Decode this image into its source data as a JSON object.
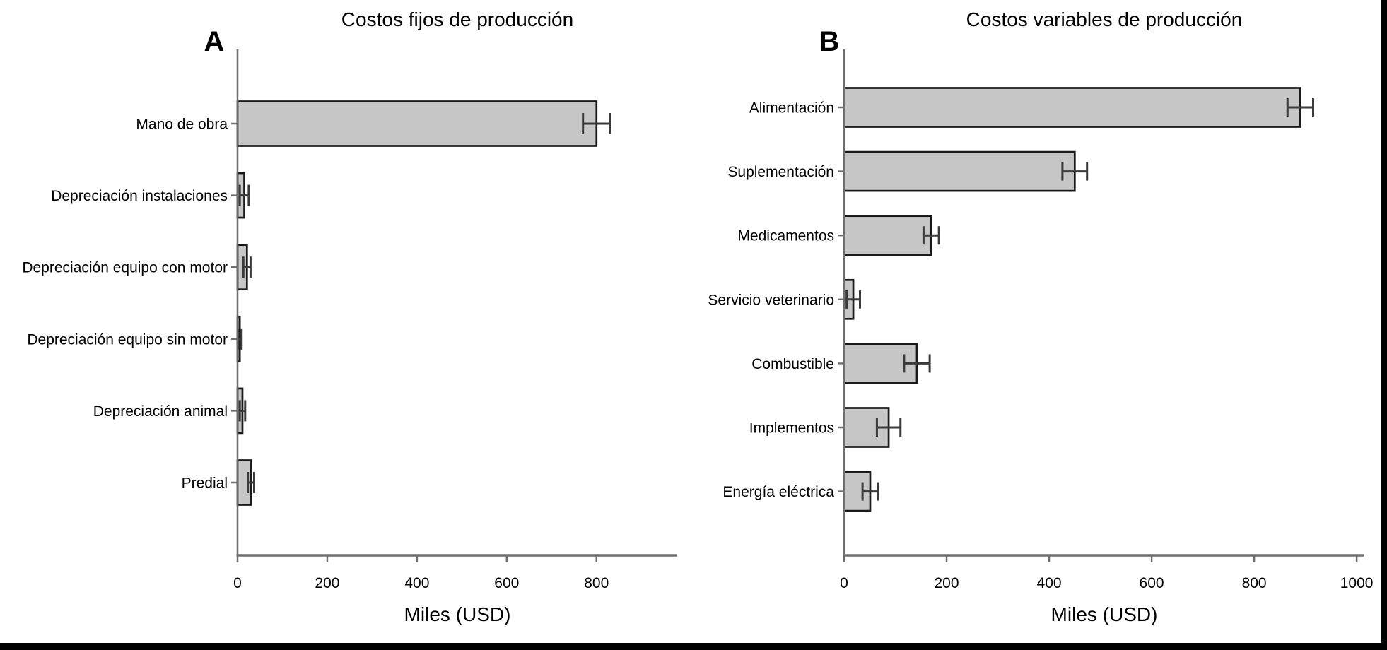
{
  "frame": {
    "background": "#ffffff",
    "border_color": "#000000"
  },
  "colors": {
    "bar_fill": "#c6c6c6",
    "bar_border": "#1a1a1a",
    "axis": "#6e6e6e",
    "error_bar": "#3a3a3a",
    "text": "#000000"
  },
  "panel_a": {
    "letter": "A",
    "title": "Costos fijos de producción",
    "xlabel": "Miles (USD)"
  },
  "panel_b": {
    "letter": "B",
    "title": "Costos variables de producción",
    "xlabel": "Miles (USD)"
  },
  "chart_data": [
    {
      "type": "bar",
      "orientation": "horizontal",
      "panel": "A",
      "title": "Costos fijos de producción",
      "xlabel": "Miles (USD)",
      "categories": [
        "Mano de obra",
        "Depreciación instalaciones",
        "Depreciación equipo con motor",
        "Depreciación equipo sin motor",
        "Depreciación animal",
        "Predial"
      ],
      "values": [
        800,
        15,
        21,
        5,
        11,
        30
      ],
      "errors": [
        30,
        10,
        8,
        4,
        6,
        7
      ],
      "xticks": [
        0,
        200,
        400,
        600,
        800
      ],
      "xlim": [
        0,
        980
      ],
      "grid": false,
      "legend": false
    },
    {
      "type": "bar",
      "orientation": "horizontal",
      "panel": "B",
      "title": "Costos variables de producción",
      "xlabel": "Miles (USD)",
      "categories": [
        "Alimentación",
        "Suplementación",
        "Medicamentos",
        "Servicio veterinario",
        "Combustible",
        "Implementos",
        "Energía eléctrica"
      ],
      "values": [
        890,
        450,
        170,
        18,
        142,
        87,
        51
      ],
      "errors": [
        25,
        24,
        15,
        13,
        25,
        23,
        15
      ],
      "xticks": [
        0,
        200,
        400,
        600,
        800,
        1000
      ],
      "xlim": [
        0,
        1015
      ],
      "grid": false,
      "legend": false
    }
  ]
}
